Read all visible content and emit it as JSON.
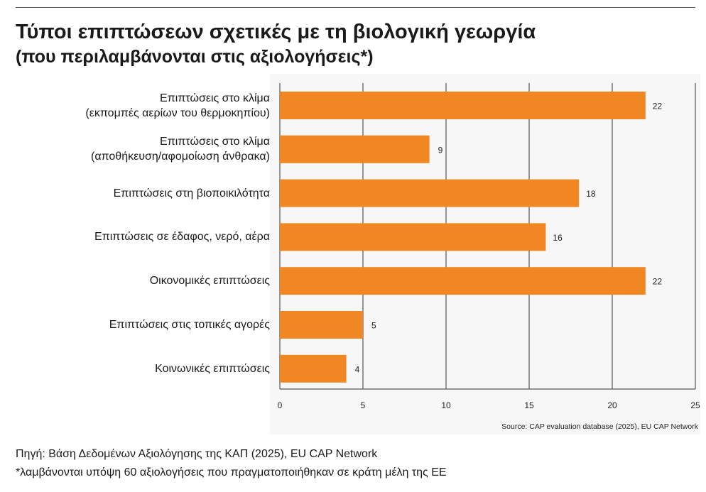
{
  "chart_data": {
    "type": "bar",
    "orientation": "horizontal",
    "title": "Τύποι επιπτώσεων σχετικές με τη βιολογική γεωργία",
    "subtitle": "(που περιλαμβάνονται στις αξιολογήσεις*)",
    "categories": [
      [
        "Επιπτώσεις στο κλίμα",
        "(εκπομπές αερίων του θερμοκηπίου)"
      ],
      [
        "Επιπτώσεις στο κλίμα",
        "(αποθήκευση/αφομοίωση άνθρακα)"
      ],
      [
        "Επιπτώσεις στη βιοποικιλότητα"
      ],
      [
        "Επιπτώσεις σε έδαφος, νερό, αέρα"
      ],
      [
        "Οικονομικές επιπτώσεις"
      ],
      [
        "Επιπτώσεις στις τοπικές αγορές"
      ],
      [
        "Κοινωνικές επιπτώσεις"
      ]
    ],
    "values": [
      22,
      9,
      18,
      16,
      22,
      5,
      4
    ],
    "xlim": [
      0,
      25
    ],
    "xticks": [
      0,
      5,
      10,
      15,
      20,
      25
    ],
    "grid": true,
    "bar_color": "#f08723",
    "source": "Source: CAP evaluation database (2025), EU CAP Network"
  },
  "footer": {
    "line1": "Πηγή: Βάση Δεδομένων Αξιολόγησης της ΚΑΠ (2025), EU CAP Network",
    "line2": "*λαμβάνονται υπόψη 60 αξιολογήσεις που πραγματοποιήθηκαν σε κράτη μέλη της ΕΕ"
  }
}
